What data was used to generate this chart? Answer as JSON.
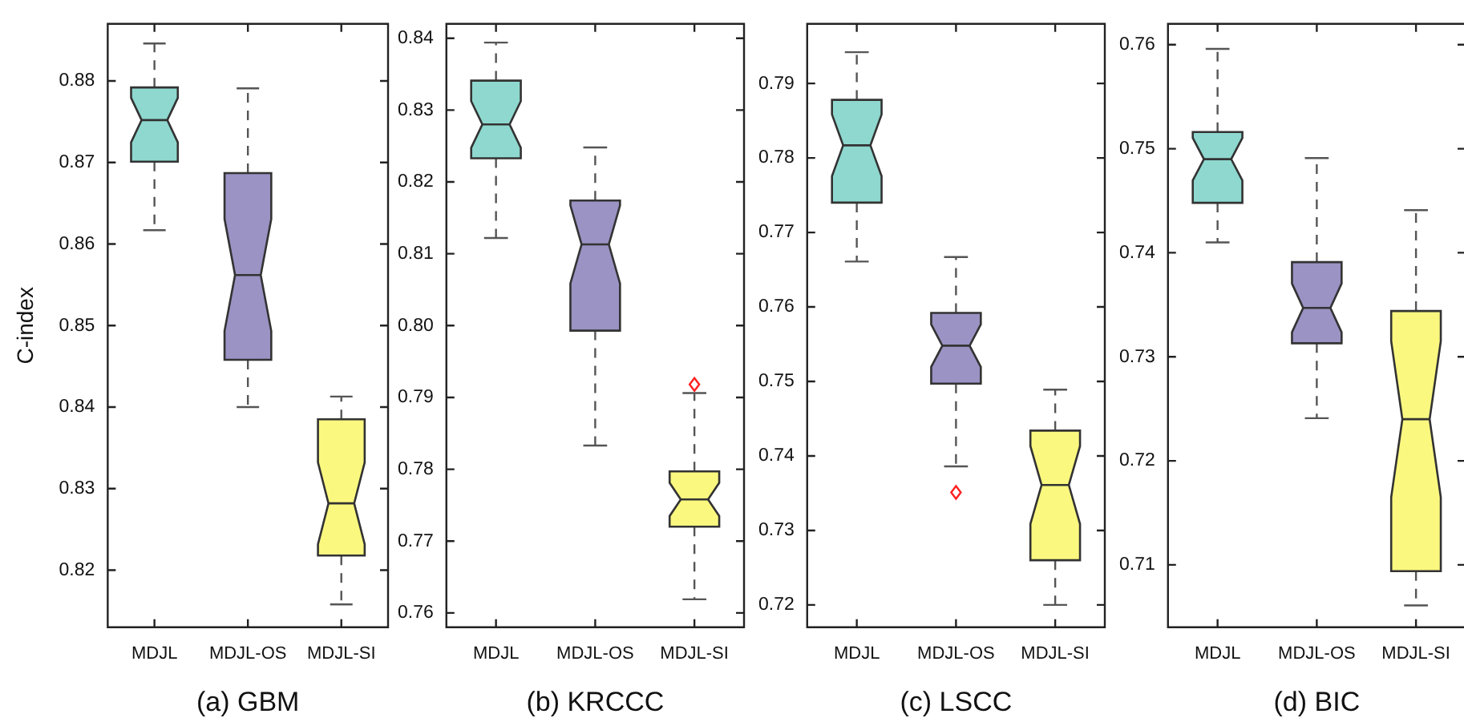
{
  "chart_data": [
    {
      "type": "box",
      "xlabel": "(a) GBM",
      "ylabel": "C-index",
      "categories": [
        "MDJL",
        "MDJL-OS",
        "MDJL-SI"
      ],
      "colors": [
        "#8ed8cf",
        "#9a93c4",
        "#faf87f"
      ],
      "ylim": [
        0.813,
        0.887
      ],
      "yticks": [
        0.82,
        0.83,
        0.84,
        0.85,
        0.86,
        0.87,
        0.88
      ],
      "grid": false,
      "legend": false,
      "boxes": [
        {
          "low": 0.8617,
          "q1": 0.8701,
          "median": 0.8752,
          "q3": 0.8792,
          "high": 0.8846
        },
        {
          "low": 0.84,
          "q1": 0.8458,
          "median": 0.8562,
          "q3": 0.8687,
          "high": 0.8791
        },
        {
          "low": 0.8158,
          "q1": 0.8218,
          "median": 0.8282,
          "q3": 0.8385,
          "high": 0.8413
        }
      ]
    },
    {
      "type": "box",
      "xlabel": "(b) KRCCC",
      "categories": [
        "MDJL",
        "MDJL-OS",
        "MDJL-SI"
      ],
      "colors": [
        "#8ed8cf",
        "#9a93c4",
        "#faf87f"
      ],
      "ylim": [
        0.758,
        0.842
      ],
      "yticks": [
        0.76,
        0.77,
        0.78,
        0.79,
        {
          "value": 0.8,
          "label": "0.80"
        },
        0.81,
        0.82,
        0.83,
        0.84
      ],
      "grid": false,
      "legend": false,
      "boxes": [
        {
          "low": 0.8122,
          "q1": 0.8233,
          "median": 0.828,
          "q3": 0.8341,
          "high": 0.8394
        },
        {
          "low": 0.7833,
          "q1": 0.7993,
          "median": 0.8113,
          "q3": 0.8174,
          "high": 0.8248
        },
        {
          "low": 0.7619,
          "q1": 0.772,
          "median": 0.7758,
          "q3": 0.7797,
          "high": 0.7906,
          "outliers": [
            0.7918
          ]
        }
      ]
    },
    {
      "type": "box",
      "xlabel": "(c) LSCC",
      "categories": [
        "MDJL",
        "MDJL-OS",
        "MDJL-SI"
      ],
      "colors": [
        "#8ed8cf",
        "#9a93c4",
        "#faf87f"
      ],
      "ylim": [
        0.717,
        0.798
      ],
      "yticks": [
        0.72,
        0.73,
        0.74,
        0.75,
        0.76,
        0.77,
        0.78,
        0.79
      ],
      "grid": false,
      "legend": false,
      "boxes": [
        {
          "low": 0.7661,
          "q1": 0.774,
          "median": 0.7817,
          "q3": 0.7878,
          "high": 0.7942
        },
        {
          "low": 0.7386,
          "q1": 0.7497,
          "median": 0.7548,
          "q3": 0.7592,
          "high": 0.7667,
          "outliers": [
            0.7351
          ]
        },
        {
          "low": 0.72,
          "q1": 0.726,
          "median": 0.7361,
          "q3": 0.7434,
          "high": 0.7489
        }
      ]
    },
    {
      "type": "box",
      "xlabel": "(d) BIC",
      "categories": [
        "MDJL",
        "MDJL-OS",
        "MDJL-SI"
      ],
      "colors": [
        "#8ed8cf",
        "#9a93c4",
        "#faf87f"
      ],
      "ylim": [
        0.704,
        0.762
      ],
      "yticks": [
        0.71,
        0.72,
        0.73,
        0.74,
        0.75,
        0.76
      ],
      "grid": false,
      "legend": false,
      "boxes": [
        {
          "low": 0.741,
          "q1": 0.7448,
          "median": 0.749,
          "q3": 0.7516,
          "high": 0.7596
        },
        {
          "low": 0.7241,
          "q1": 0.7313,
          "median": 0.7347,
          "q3": 0.7391,
          "high": 0.7491
        },
        {
          "low": 0.7061,
          "q1": 0.7094,
          "median": 0.724,
          "q3": 0.7344,
          "high": 0.7441
        }
      ]
    }
  ]
}
